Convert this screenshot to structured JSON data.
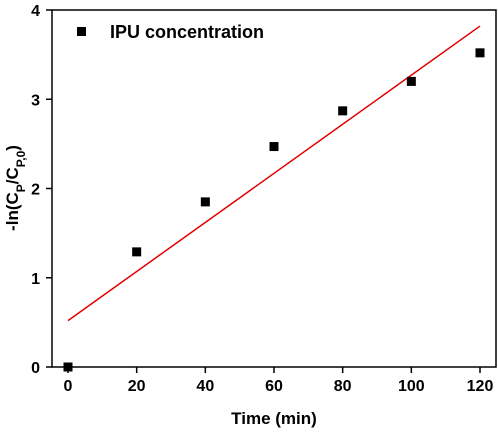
{
  "chart_data": {
    "type": "scatter",
    "xlabel": "Time (min)",
    "ylabel": {
      "parts": [
        {
          "text": "-ln(C",
          "sub": false
        },
        {
          "text": "P",
          "sub": true
        },
        {
          "text": "/C",
          "sub": false
        },
        {
          "text": "P,0",
          "sub": true
        },
        {
          "text": ")",
          "sub": false
        }
      ]
    },
    "xlim": [
      0,
      120
    ],
    "ylim": [
      0,
      4
    ],
    "x_ticks": [
      "0",
      "20",
      "40",
      "60",
      "80",
      "100",
      "120"
    ],
    "y_ticks": [
      "0",
      "1",
      "2",
      "3",
      "4"
    ],
    "grid": false,
    "legend_position": "top-left",
    "series": [
      {
        "name": "IPU concentration",
        "marker": "square",
        "color": "#000000",
        "points": [
          {
            "x": 0,
            "y": 0.0
          },
          {
            "x": 20,
            "y": 1.29
          },
          {
            "x": 40,
            "y": 1.85
          },
          {
            "x": 60,
            "y": 2.47
          },
          {
            "x": 80,
            "y": 2.87
          },
          {
            "x": 100,
            "y": 3.2
          },
          {
            "x": 120,
            "y": 3.52
          }
        ]
      }
    ],
    "fit_line": {
      "color": "#e00000",
      "x": [
        0,
        120
      ],
      "y": [
        0.52,
        3.82
      ]
    }
  }
}
